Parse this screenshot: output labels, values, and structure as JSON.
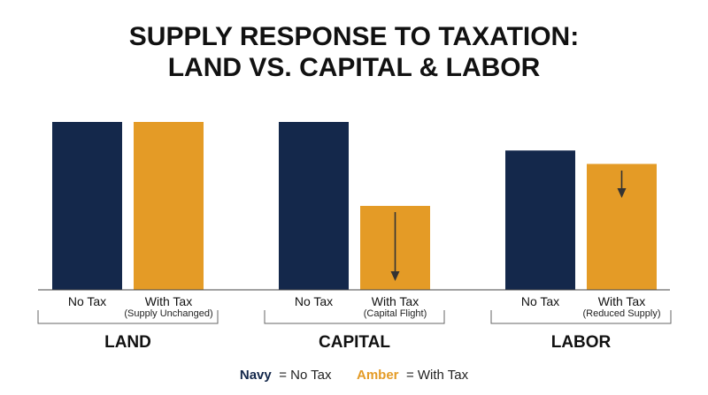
{
  "chart_data": {
    "type": "bar",
    "title_lines": [
      "SUPPLY RESPONSE TO TAXATION:",
      "LAND VS. CAPITAL & LABOR"
    ],
    "xlabel": "",
    "ylabel": "",
    "ylim": [
      0,
      100
    ],
    "grid": false,
    "categories": [
      "LAND",
      "CAPITAL",
      "LABOR"
    ],
    "series": [
      {
        "name": "No Tax",
        "color": "#14284b",
        "values": [
          100,
          100,
          83
        ]
      },
      {
        "name": "With Tax",
        "color": "#e49b26",
        "values": [
          100,
          50,
          75
        ]
      }
    ],
    "bar_labels": [
      {
        "no_tax": "No Tax",
        "with_tax": "With Tax",
        "note": "(Supply Unchanged)"
      },
      {
        "no_tax": "No Tax",
        "with_tax": "With Tax",
        "note": "(Capital Flight)"
      },
      {
        "no_tax": "No Tax",
        "with_tax": "With Tax",
        "note": "(Reduced Supply)"
      }
    ],
    "annotations": [
      {
        "category": "CAPITAL",
        "type": "down-arrow"
      },
      {
        "category": "LABOR",
        "type": "down-arrow"
      }
    ],
    "legend": {
      "position": "bottom-center",
      "items": [
        {
          "key": "Navy",
          "text": "= No Tax",
          "color": "#14284b"
        },
        {
          "key": "Amber",
          "text": "= With Tax",
          "color": "#e49b26"
        }
      ]
    }
  }
}
